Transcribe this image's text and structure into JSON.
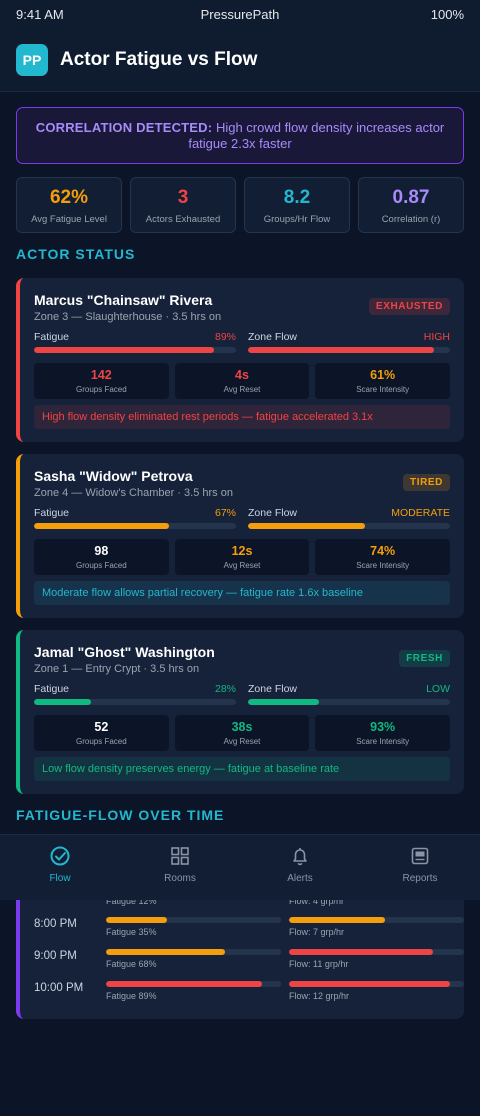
{
  "status_bar": {
    "time": "9:41 AM",
    "app": "PressurePath",
    "battery": "100%"
  },
  "header": {
    "logo": "PP",
    "title": "Actor Fatigue vs Flow"
  },
  "banner": {
    "label": "CORRELATION DETECTED:",
    "text": "High crowd flow density increases actor fatigue 2.3x faster"
  },
  "stats": [
    {
      "value": "62%",
      "label": "Avg Fatigue Level",
      "color": "#f59e0b"
    },
    {
      "value": "3",
      "label": "Actors Exhausted",
      "color": "#ef4444"
    },
    {
      "value": "8.2",
      "label": "Groups/Hr Flow",
      "color": "#22b8cf"
    },
    {
      "value": "0.87",
      "label": "Correlation (r)",
      "color": "#a78bfa"
    }
  ],
  "actor_section": {
    "title": "ACTOR STATUS"
  },
  "actors": [
    {
      "name": "Marcus \"Chainsaw\" Rivera",
      "subtitle": "Zone 3 — Slaughterhouse · 3.5 hrs on",
      "badge": "EXHAUSTED",
      "color": "#ef4444",
      "fatigue_label": "Fatigue",
      "fatigue_value": "89%",
      "fatigue_pct": 89,
      "flow_label": "Zone Flow",
      "flow_value": "HIGH",
      "flow_pct": 92,
      "flow_color": "#ef4444",
      "metrics": [
        {
          "value": "142",
          "label": "Groups Faced",
          "color": "#ef4444"
        },
        {
          "value": "4s",
          "label": "Avg Reset",
          "color": "#ef4444"
        },
        {
          "value": "61%",
          "label": "Scare Intensity",
          "color": "#f59e0b"
        }
      ],
      "note": "High flow density eliminated rest periods — fatigue accelerated 3.1x"
    },
    {
      "name": "Sasha \"Widow\" Petrova",
      "subtitle": "Zone 4 — Widow's Chamber · 3.5 hrs on",
      "badge": "TIRED",
      "color": "#f59e0b",
      "fatigue_label": "Fatigue",
      "fatigue_value": "67%",
      "fatigue_pct": 67,
      "flow_label": "Zone Flow",
      "flow_value": "MODERATE",
      "flow_pct": 58,
      "flow_color": "#f59e0b",
      "metrics": [
        {
          "value": "98",
          "label": "Groups Faced",
          "color": "#ffffff"
        },
        {
          "value": "12s",
          "label": "Avg Reset",
          "color": "#f59e0b"
        },
        {
          "value": "74%",
          "label": "Scare Intensity",
          "color": "#f59e0b"
        }
      ],
      "note": "Moderate flow allows partial recovery — fatigue rate 1.6x baseline"
    },
    {
      "name": "Jamal \"Ghost\" Washington",
      "subtitle": "Zone 1 — Entry Crypt · 3.5 hrs on",
      "badge": "FRESH",
      "color": "#10b981",
      "fatigue_label": "Fatigue",
      "fatigue_value": "28%",
      "fatigue_pct": 28,
      "flow_label": "Zone Flow",
      "flow_value": "LOW",
      "flow_pct": 35,
      "flow_color": "#10b981",
      "metrics": [
        {
          "value": "52",
          "label": "Groups Faced",
          "color": "#ffffff"
        },
        {
          "value": "38s",
          "label": "Avg Reset",
          "color": "#10b981"
        },
        {
          "value": "93%",
          "label": "Scare Intensity",
          "color": "#10b981"
        }
      ],
      "note": "Low flow density preserves energy — fatigue at baseline rate"
    }
  ],
  "timeline": {
    "title": "FATIGUE-FLOW OVER TIME",
    "rows": [
      {
        "time": "",
        "fatigue_label": "Fatigue 12%",
        "fatigue_pct": 12,
        "fatigue_color": "#f59e0b",
        "flow_label": "Flow: 4 grp/hr",
        "flow_pct": 33,
        "flow_color": "#f59e0b"
      },
      {
        "time": "8:00 PM",
        "fatigue_label": "Fatigue 35%",
        "fatigue_pct": 35,
        "fatigue_color": "#f59e0b",
        "flow_label": "Flow: 7 grp/hr",
        "flow_pct": 55,
        "flow_color": "#f59e0b"
      },
      {
        "time": "9:00 PM",
        "fatigue_label": "Fatigue 68%",
        "fatigue_pct": 68,
        "fatigue_color": "#f59e0b",
        "flow_label": "Flow: 11 grp/hr",
        "flow_pct": 82,
        "flow_color": "#ef4444"
      },
      {
        "time": "10:00 PM",
        "fatigue_label": "Fatigue 89%",
        "fatigue_pct": 89,
        "fatigue_color": "#ef4444",
        "flow_label": "Flow: 12 grp/hr",
        "flow_pct": 92,
        "flow_color": "#ef4444"
      }
    ]
  },
  "tabs": [
    {
      "label": "Flow",
      "icon": "check-circle-icon",
      "active": true
    },
    {
      "label": "Rooms",
      "icon": "grid-icon",
      "active": false
    },
    {
      "label": "Alerts",
      "icon": "bell-icon",
      "active": false
    },
    {
      "label": "Reports",
      "icon": "report-icon",
      "active": false
    }
  ]
}
